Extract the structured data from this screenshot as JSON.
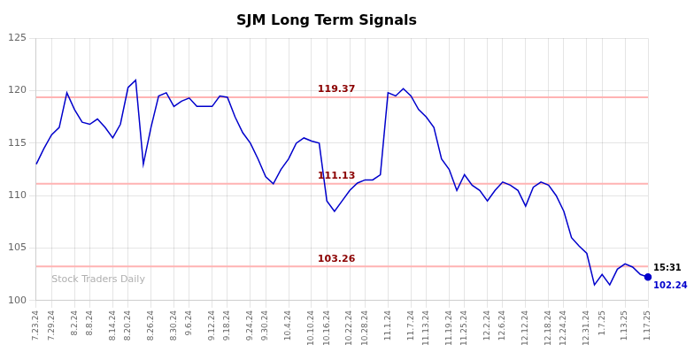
{
  "chart_data": {
    "type": "line",
    "title": "SJM Long Term Signals",
    "color": "#0000cc",
    "categories": [
      "7.23.24",
      null,
      "7.29.24",
      null,
      null,
      "8.2.24",
      null,
      "8.8.24",
      null,
      null,
      "8.14.24",
      null,
      "8.20.24",
      null,
      null,
      "8.26.24",
      null,
      null,
      "8.30.24",
      null,
      "9.6.24",
      null,
      null,
      "9.12.24",
      null,
      "9.18.24",
      null,
      null,
      "9.24.24",
      null,
      "9.30.24",
      null,
      null,
      "10.4.24",
      null,
      null,
      "10.10.24",
      null,
      "10.16.24",
      null,
      null,
      "10.22.24",
      null,
      "10.28.24",
      null,
      null,
      "11.1.24",
      null,
      null,
      "11.7.24",
      null,
      "11.13.24",
      null,
      null,
      "11.19.24",
      null,
      "11.25.24",
      null,
      null,
      "12.2.24",
      null,
      "12.6.24",
      null,
      null,
      "12.12.24",
      null,
      null,
      "12.18.24",
      null,
      "12.24.24",
      null,
      null,
      "12.31.24",
      null,
      "1.7.25",
      null,
      null,
      "1.13.25",
      null,
      null,
      "1.17.25"
    ],
    "values": [
      113.0,
      114.5,
      115.8,
      116.5,
      119.8,
      118.2,
      117.0,
      116.8,
      117.3,
      116.5,
      115.5,
      116.8,
      120.3,
      121.0,
      113.0,
      116.5,
      119.5,
      119.8,
      118.5,
      119.0,
      119.3,
      118.5,
      118.5,
      118.5,
      119.5,
      119.37,
      117.5,
      116.0,
      115.0,
      113.5,
      111.8,
      111.13,
      112.5,
      113.5,
      115.0,
      115.5,
      115.2,
      115.0,
      109.5,
      108.5,
      109.5,
      110.5,
      111.2,
      111.5,
      111.5,
      112.0,
      119.8,
      119.5,
      120.2,
      119.5,
      118.2,
      117.5,
      116.5,
      113.5,
      112.5,
      110.5,
      112.0,
      111.0,
      110.5,
      109.5,
      110.5,
      111.3,
      111.0,
      110.5,
      109.0,
      110.8,
      111.3,
      111.0,
      110.0,
      108.5,
      106.0,
      105.2,
      104.5,
      101.5,
      102.5,
      101.5,
      103.0,
      103.5,
      103.2,
      102.5,
      102.24
    ],
    "ylim": [
      100,
      125
    ],
    "yticks": [
      100,
      105,
      110,
      115,
      120,
      125
    ],
    "grid": true,
    "hlines": [
      119.37,
      111.13,
      103.26
    ],
    "hline_color": "#ffb3b3",
    "hline_label_color": "#8b0000",
    "last_point": {
      "label": "15:31",
      "value": 102.24
    },
    "watermark": "Stock Traders Daily",
    "watermark_color": "#b0b0b0"
  }
}
